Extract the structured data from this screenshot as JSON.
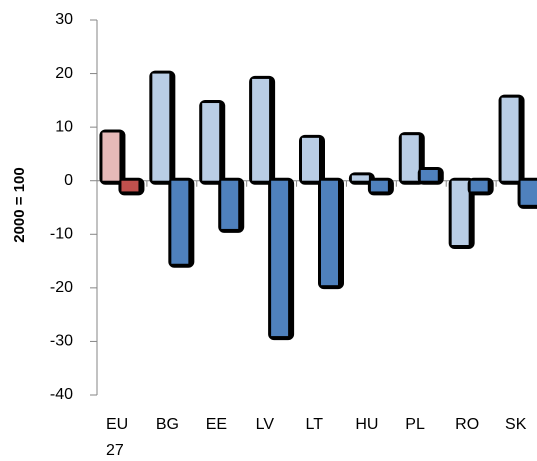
{
  "chart_data": {
    "type": "bar",
    "y_label": "2000 = 100",
    "categories": [
      "EU 27",
      "BG",
      "EE",
      "LV",
      "LT",
      "HU",
      "PL",
      "RO",
      "SK"
    ],
    "series": [
      {
        "color": "#b9cde5",
        "colors": [
          "#e6b9b8",
          "#b9cde5",
          "#b9cde5",
          "#b9cde5",
          "#b9cde5",
          "#b9cde5",
          "#b9cde5",
          "#b9cde5",
          "#b9cde5"
        ],
        "values": [
          9,
          20,
          14.5,
          19,
          8,
          1,
          8.5,
          -12,
          15.5
        ]
      },
      {
        "color": "#4f81bd",
        "colors": [
          "#c0504d",
          "#4f81bd",
          "#4f81bd",
          "#4f81bd",
          "#4f81bd",
          "#4f81bd",
          "#4f81bd",
          "#4f81bd",
          "#4f81bd"
        ],
        "values": [
          -2,
          -15.5,
          -9,
          -29,
          -19.5,
          -2,
          2,
          -2,
          -4.5
        ]
      }
    ],
    "ylim": [
      -40,
      30
    ],
    "yticks": [
      -40,
      -30,
      -20,
      -10,
      0,
      10,
      20,
      30
    ],
    "grid": false
  }
}
